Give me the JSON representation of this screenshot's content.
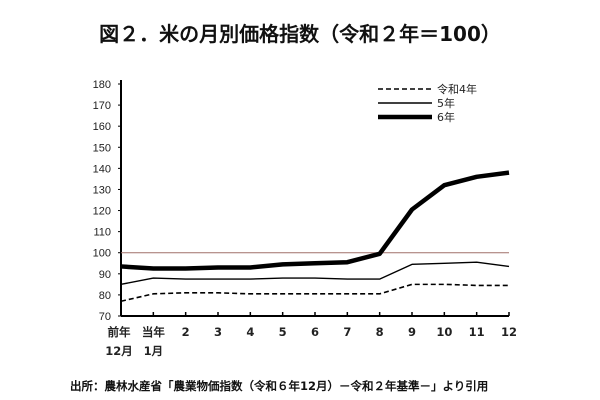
{
  "chart_data": {
    "type": "line",
    "title": "図２．米の月別価格指数（令和２年＝100）",
    "source": "出所：農林水産省「農業物価指数（令和６年12月）－令和２年基準－」より引用",
    "categories": [
      [
        "前年",
        "12月"
      ],
      [
        "当年",
        "1月"
      ],
      [
        "2"
      ],
      [
        "3"
      ],
      [
        "4"
      ],
      [
        "5"
      ],
      [
        "6"
      ],
      [
        "7"
      ],
      [
        "8"
      ],
      [
        "9"
      ],
      [
        "10"
      ],
      [
        "11"
      ],
      [
        "12"
      ]
    ],
    "ylim": [
      70,
      180
    ],
    "yticks": [
      70,
      80,
      90,
      100,
      110,
      120,
      130,
      140,
      150,
      160,
      170,
      180
    ],
    "reference_line": {
      "value": 100,
      "color": "#a0706a"
    },
    "legend_position": "top-right",
    "grid": false,
    "series": [
      {
        "name": "令和4年",
        "style": "dashed",
        "values": [
          77,
          80.5,
          81,
          81,
          80.5,
          80.5,
          80.5,
          80.5,
          80.5,
          85,
          85,
          84.5,
          84.5
        ]
      },
      {
        "name": "5年",
        "style": "thin",
        "values": [
          85,
          88,
          87.5,
          87.5,
          87.5,
          88,
          88,
          87.5,
          87.5,
          94.5,
          95,
          95.5,
          93.5
        ]
      },
      {
        "name": "6年",
        "style": "thick",
        "values": [
          93.5,
          92.5,
          92.5,
          93,
          93,
          94.5,
          95,
          95.5,
          99.5,
          120.5,
          132,
          136,
          138
        ]
      }
    ]
  }
}
